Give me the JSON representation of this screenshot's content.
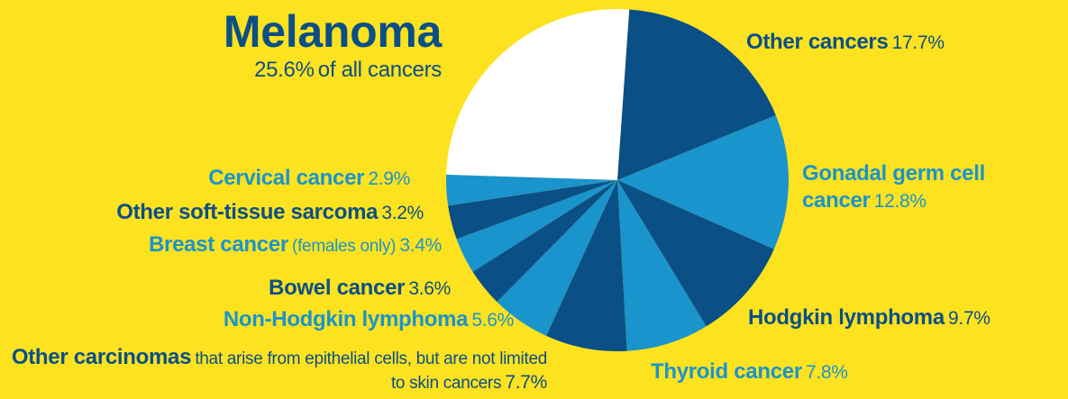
{
  "chart_data": {
    "type": "pie",
    "categories": [
      "Melanoma",
      "Other cancers",
      "Gonadal germ cell cancer",
      "Hodgkin lymphoma",
      "Thyroid cancer",
      "Other carcinomas",
      "Non-Hodgkin lymphoma",
      "Bowel cancer",
      "Breast cancer",
      "Other soft-tissue sarcoma",
      "Cervical cancer"
    ],
    "values": [
      25.6,
      17.7,
      12.8,
      9.7,
      7.8,
      7.7,
      5.6,
      3.6,
      3.4,
      3.2,
      2.9
    ],
    "value_labels": [
      "25.6%",
      "17.7%",
      "12.8%",
      "9.7%",
      "7.8%",
      "7.7%",
      "5.6%",
      "3.6%",
      "3.4%",
      "3.2%",
      "2.9%"
    ],
    "notes": [
      "of all cancers",
      null,
      null,
      null,
      null,
      "that arise from epithelial cells, but are not limited to skin cancers",
      null,
      null,
      "(females only)",
      null,
      null
    ],
    "colors": [
      "#ffffff",
      "#0b4f87",
      "#1a94cc",
      "#0b4f87",
      "#1a94cc",
      "#0b4f87",
      "#1a94cc",
      "#0b4f87",
      "#1a94cc",
      "#0b4f87",
      "#1a94cc"
    ]
  }
}
